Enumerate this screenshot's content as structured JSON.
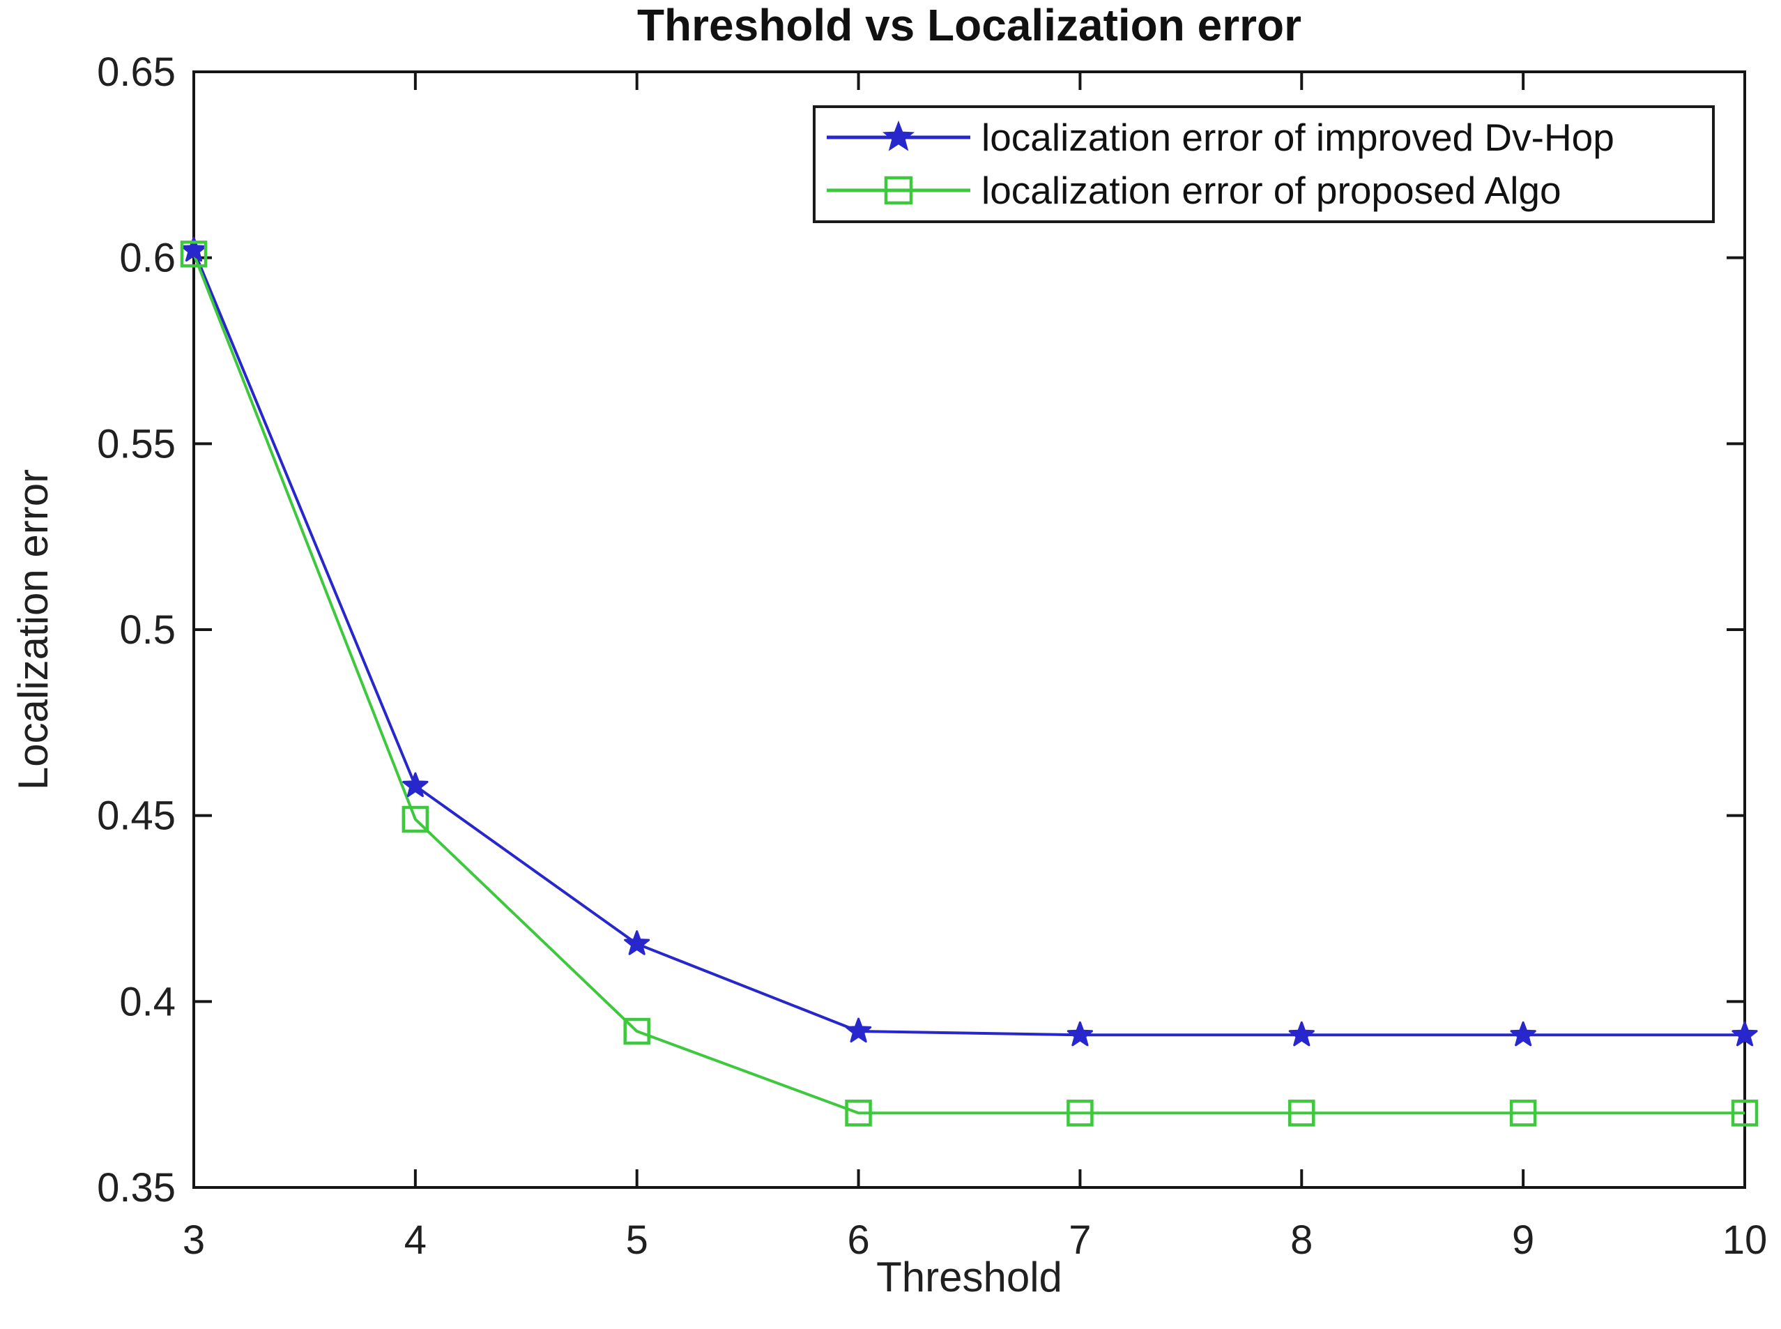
{
  "figure": {
    "background": "#ffffff"
  },
  "chart_data": {
    "type": "line",
    "title": "Threshold vs Localization error",
    "xlabel": "Threshold",
    "ylabel": "Localization error",
    "xlim": [
      3,
      10
    ],
    "ylim": [
      0.35,
      0.65
    ],
    "xticks": [
      3,
      4,
      5,
      6,
      7,
      8,
      9,
      10
    ],
    "xticklabels": [
      "3",
      "4",
      "5",
      "6",
      "7",
      "8",
      "9",
      "10"
    ],
    "yticks": [
      0.35,
      0.4,
      0.45,
      0.5,
      0.55,
      0.6,
      0.65
    ],
    "yticklabels": [
      "0.35",
      "0.4",
      "0.45",
      "0.5",
      "0.55",
      "0.6",
      "0.65"
    ],
    "grid": false,
    "legend_position": "top-right",
    "axis_color": "#151515",
    "text_color": "#202020",
    "x": [
      3,
      4,
      5,
      6,
      7,
      8,
      9,
      10
    ],
    "series": [
      {
        "name": "improved-dv-hop",
        "label": "localization error of improved Dv-Hop",
        "color": "#2727cc",
        "marker": "star",
        "values": [
          0.602,
          0.458,
          0.4155,
          0.392,
          0.391,
          0.391,
          0.391,
          0.391
        ]
      },
      {
        "name": "proposed-algo",
        "label": "localization error of proposed Algo",
        "color": "#3dc83d",
        "marker": "square",
        "values": [
          0.601,
          0.449,
          0.392,
          0.37,
          0.37,
          0.37,
          0.37,
          0.37
        ]
      }
    ]
  }
}
